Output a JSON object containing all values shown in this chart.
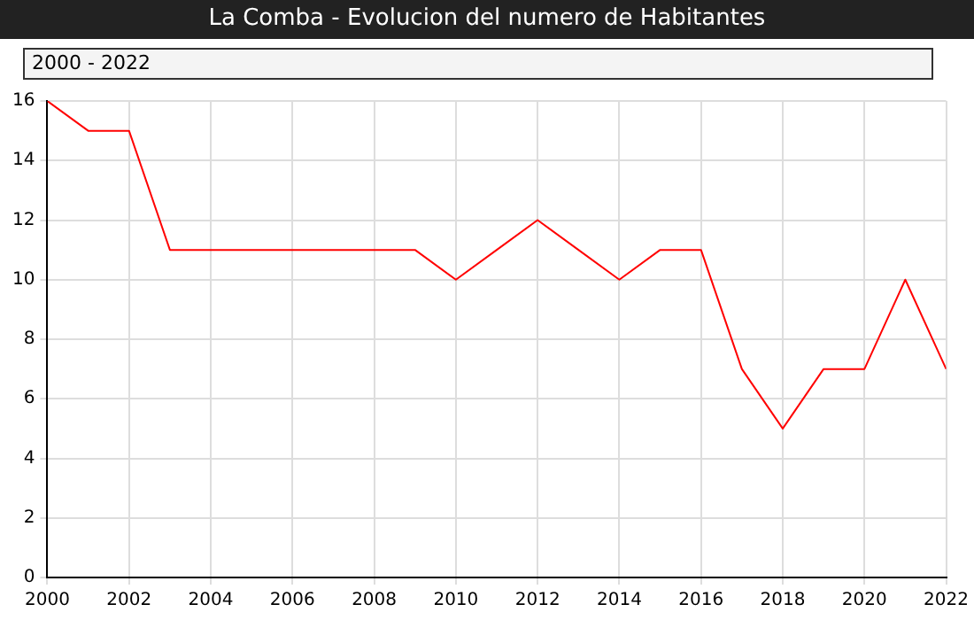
{
  "chart_data": {
    "type": "line",
    "title": "La Comba - Evolucion del numero de Habitantes",
    "subtitle": "2000 - 2022",
    "x": [
      2000,
      2001,
      2002,
      2003,
      2004,
      2005,
      2006,
      2007,
      2008,
      2009,
      2010,
      2011,
      2012,
      2013,
      2014,
      2015,
      2016,
      2017,
      2018,
      2019,
      2020,
      2021,
      2022
    ],
    "series": [
      {
        "color": "#ff0000",
        "values": [
          16,
          15,
          15,
          11,
          11,
          11,
          11,
          11,
          11,
          11,
          10,
          11,
          12,
          11,
          10,
          11,
          11,
          7,
          5,
          7,
          7,
          10,
          7
        ]
      }
    ],
    "xlim": [
      2000,
      2022
    ],
    "xticks": [
      2000,
      2002,
      2004,
      2006,
      2008,
      2010,
      2012,
      2014,
      2016,
      2018,
      2020,
      2022
    ],
    "ylim": [
      0,
      16
    ],
    "yticks": [
      0,
      2,
      4,
      6,
      8,
      10,
      12,
      14,
      16
    ],
    "grid": true,
    "legend": false,
    "marker": "none",
    "line_style": "solid"
  }
}
